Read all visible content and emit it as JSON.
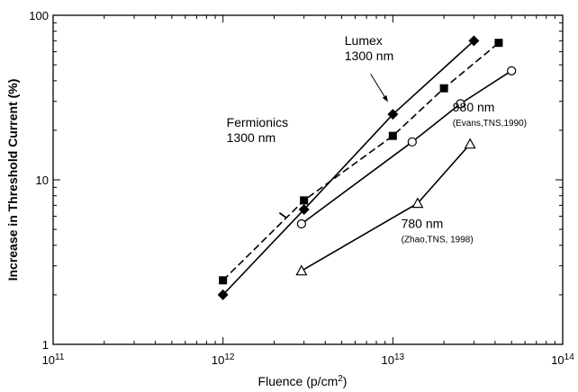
{
  "chart_data": {
    "type": "scatter",
    "x_scale": "log",
    "y_scale": "log",
    "xlim": [
      100000000000.0,
      100000000000000.0
    ],
    "ylim": [
      1,
      100
    ],
    "xlabel": "Fluence (p/cm2)",
    "xlabel_main": "Fluence (p/cm",
    "xlabel_sup": "2",
    "xlabel_end": ")",
    "ylabel": "Increase in Threshold Current (%)",
    "x_ticks": [
      {
        "value": 100000000000.0,
        "base": "10",
        "exp": "11"
      },
      {
        "value": 1000000000000.0,
        "base": "10",
        "exp": "12"
      },
      {
        "value": 10000000000000.0,
        "base": "10",
        "exp": "13"
      },
      {
        "value": 100000000000000.0,
        "base": "10",
        "exp": "14"
      }
    ],
    "y_ticks": [
      {
        "value": 1,
        "label": "1"
      },
      {
        "value": 10,
        "label": "10"
      },
      {
        "value": 100,
        "label": "100"
      }
    ],
    "grid": false,
    "legend": "none",
    "series": [
      {
        "name": "Fermionics 1300 nm",
        "marker": "filled-square",
        "line": "dashed",
        "color": "#000000",
        "points": [
          [
            1000000000000.0,
            2.45
          ],
          [
            3000000000000.0,
            7.5
          ],
          [
            10000000000000.0,
            18.5
          ],
          [
            20000000000000.0,
            36
          ],
          [
            42000000000000.0,
            68
          ]
        ]
      },
      {
        "name": "Lumex 1300 nm",
        "marker": "filled-diamond",
        "line": "solid",
        "color": "#000000",
        "points": [
          [
            1000000000000.0,
            2.0
          ],
          [
            3000000000000.0,
            6.6
          ],
          [
            10000000000000.0,
            25
          ],
          [
            30000000000000.0,
            70
          ]
        ]
      },
      {
        "name": "980 nm (Evans,TNS,1990)",
        "marker": "open-circle",
        "line": "solid",
        "color": "#000000",
        "points": [
          [
            2900000000000.0,
            5.4
          ],
          [
            13000000000000.0,
            17
          ],
          [
            25000000000000.0,
            29
          ],
          [
            50000000000000.0,
            46
          ]
        ]
      },
      {
        "name": "780 nm (Zhao,TNS, 1998)",
        "marker": "open-triangle",
        "line": "solid",
        "color": "#000000",
        "points": [
          [
            2900000000000.0,
            2.8
          ],
          [
            14000000000000.0,
            7.2
          ],
          [
            28500000000000.0,
            16.5
          ]
        ]
      }
    ],
    "annotations": [
      {
        "id": "fermionics",
        "lines": [
          "Fermionics",
          "1300 nm"
        ],
        "size": "big",
        "at": [
          1050000000000.0,
          21
        ],
        "arrow": {
          "from": [
            2150000000000.0,
            6.3
          ],
          "to": [
            2350000000000.0,
            5.9
          ],
          "head": false
        }
      },
      {
        "id": "lumex",
        "lines": [
          "Lumex",
          "1300 nm"
        ],
        "size": "big",
        "at": [
          5200000000000.0,
          66
        ],
        "arrow": {
          "from": [
            7400000000000.0,
            44
          ],
          "to": [
            9300000000000.0,
            30
          ],
          "head": true
        }
      },
      {
        "id": "nm980",
        "lines": [
          "980 nm",
          "(Evans,TNS,1990)"
        ],
        "size": "mixed",
        "at": [
          22500000000000.0,
          26
        ],
        "arrow": null
      },
      {
        "id": "nm780",
        "lines": [
          "780 nm",
          "(Zhao,TNS, 1998)"
        ],
        "size": "mixed",
        "at": [
          11200000000000.0,
          5.1
        ],
        "arrow": null
      }
    ]
  }
}
